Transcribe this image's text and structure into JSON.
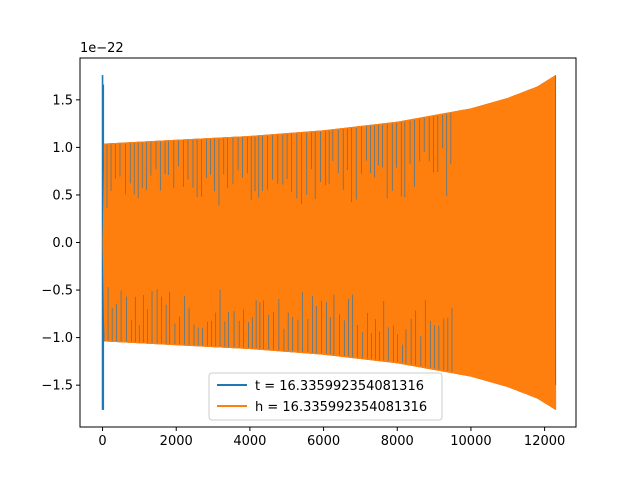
{
  "chart_data": {
    "type": "line",
    "title": "",
    "xlabel": "",
    "ylabel": "",
    "y_offset_label": "1e−22",
    "xlim": [
      -612,
      12852
    ],
    "ylim": [
      -1.94,
      1.94
    ],
    "x_ticks": [
      0,
      2000,
      4000,
      6000,
      8000,
      10000,
      12000
    ],
    "x_tick_labels": [
      "0",
      "2000",
      "4000",
      "6000",
      "8000",
      "10000",
      "12000"
    ],
    "y_ticks": [
      -1.5,
      -1.0,
      -0.5,
      0.0,
      0.5,
      1.0,
      1.5
    ],
    "y_tick_labels": [
      "−1.5",
      "−1.0",
      "−0.5",
      "0.0",
      "0.5",
      "1.0",
      "1.5"
    ],
    "grid": false,
    "legend_position": "lower center",
    "series": [
      {
        "name": "t = 16.335992354081316",
        "color": "#1f77b4",
        "spike_x": [
          0,
          20,
          50
        ],
        "spike_y": [
          [
            -1.76,
            1.76
          ],
          [
            -1.76,
            1.66
          ],
          [
            -1.04,
            1.04
          ]
        ],
        "envelope_x": [
          50,
          2000,
          4000,
          6000,
          8000,
          10000,
          11000,
          11800,
          12300
        ],
        "envelope_y": [
          1.04,
          1.08,
          1.12,
          1.18,
          1.27,
          1.41,
          1.52,
          1.64,
          1.76
        ]
      },
      {
        "name": "h = 16.335992354081316",
        "color": "#ff7f0e",
        "envelope_x": [
          0,
          50,
          2000,
          4000,
          6000,
          8000,
          10000,
          11000,
          11800,
          12300
        ],
        "envelope_y": [
          0.0,
          1.04,
          1.08,
          1.12,
          1.18,
          1.27,
          1.41,
          1.52,
          1.64,
          1.76
        ]
      }
    ]
  }
}
